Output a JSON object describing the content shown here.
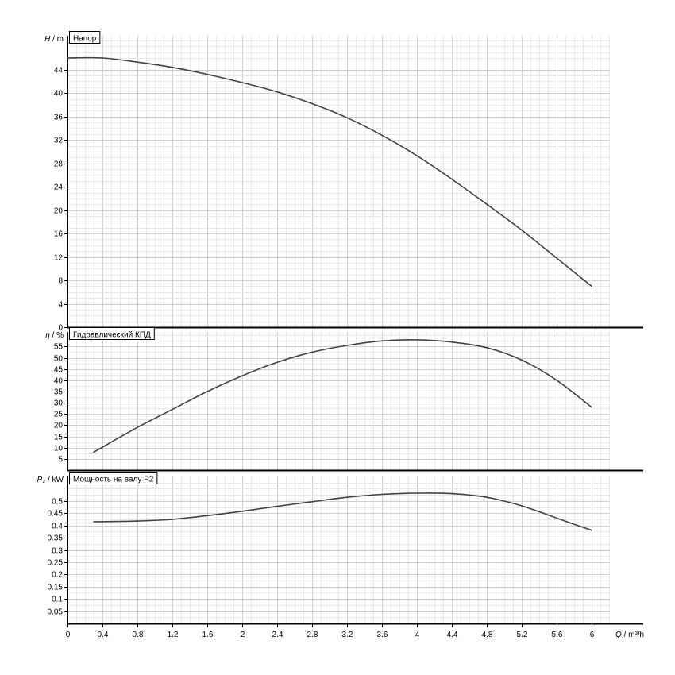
{
  "page": {
    "background": "#ffffff"
  },
  "xaxis": {
    "label": "Q / m³/h",
    "min": 0,
    "max": 6.2,
    "ticks": [
      0,
      0.4,
      0.8,
      1.2,
      1.6,
      2,
      2.4,
      2.8,
      3.2,
      3.6,
      4,
      4.4,
      4.8,
      5.2,
      5.6,
      6
    ],
    "tick_labels": [
      "0",
      "0.4",
      "0.8",
      "1.2",
      "1.6",
      "2",
      "2.4",
      "2.8",
      "3.2",
      "3.6",
      "4",
      "4.4",
      "4.8",
      "5.2",
      "5.6",
      "6"
    ]
  },
  "colors": {
    "curve": "#3d4449",
    "axis": "#000000",
    "text": "#000000",
    "grid_minor": "#e8e8e8",
    "grid_major": "#cfcfcf",
    "box_fill": "#ffffff"
  },
  "chart_data": [
    {
      "type": "line",
      "title": "Напор",
      "ylabel": "H / m",
      "ylim": [
        0,
        49.8
      ],
      "yticks": [
        0,
        4,
        8,
        12,
        16,
        20,
        24,
        28,
        32,
        36,
        40,
        44
      ],
      "ytick_labels": [
        "0",
        "4",
        "8",
        "12",
        "16",
        "20",
        "24",
        "28",
        "32",
        "36",
        "40",
        "44"
      ],
      "y_minor_step": 1,
      "x": [
        0,
        0.4,
        0.8,
        1.2,
        1.6,
        2,
        2.4,
        2.8,
        3.2,
        3.6,
        4,
        4.4,
        4.8,
        5.2,
        5.6,
        6
      ],
      "y": [
        46,
        46,
        45.3,
        44.4,
        43.2,
        41.8,
        40.2,
        38.2,
        35.8,
        32.8,
        29.3,
        25.3,
        21,
        16.6,
        11.8,
        7
      ]
    },
    {
      "type": "line",
      "title": "Гидравлический КПД",
      "ylabel": "η / %",
      "ylim": [
        0,
        61.5
      ],
      "yticks": [
        5,
        10,
        15,
        20,
        25,
        30,
        35,
        40,
        45,
        50,
        55
      ],
      "ytick_labels": [
        "5",
        "10",
        "15",
        "20",
        "25",
        "30",
        "35",
        "40",
        "45",
        "50",
        "55"
      ],
      "y_minor_step": 2.5,
      "x": [
        0.3,
        0.8,
        1.2,
        1.6,
        2,
        2.4,
        2.8,
        3.2,
        3.6,
        4,
        4.4,
        4.8,
        5.2,
        5.6,
        6
      ],
      "y": [
        8,
        19,
        27,
        35,
        42,
        48,
        52.5,
        55.5,
        57.5,
        58,
        57,
        54.5,
        49,
        40,
        28
      ]
    },
    {
      "type": "line",
      "title": "Мощность на валу P2",
      "ylabel": "P₂ / kW",
      "ylim": [
        0,
        0.6
      ],
      "yticks": [
        0.05,
        0.1,
        0.15,
        0.2,
        0.25,
        0.3,
        0.35,
        0.4,
        0.45,
        0.5
      ],
      "ytick_labels": [
        "0.05",
        "0.1",
        "0.15",
        "0.2",
        "0.25",
        "0.3",
        "0.35",
        "0.4",
        "0.45",
        "0.5"
      ],
      "y_minor_step": 0.025,
      "x": [
        0.3,
        0.8,
        1.2,
        1.6,
        2,
        2.4,
        2.8,
        3.2,
        3.6,
        4,
        4.4,
        4.8,
        5.2,
        5.6,
        6
      ],
      "y": [
        0.415,
        0.418,
        0.425,
        0.44,
        0.458,
        0.478,
        0.497,
        0.515,
        0.527,
        0.532,
        0.53,
        0.515,
        0.48,
        0.43,
        0.38
      ]
    }
  ]
}
